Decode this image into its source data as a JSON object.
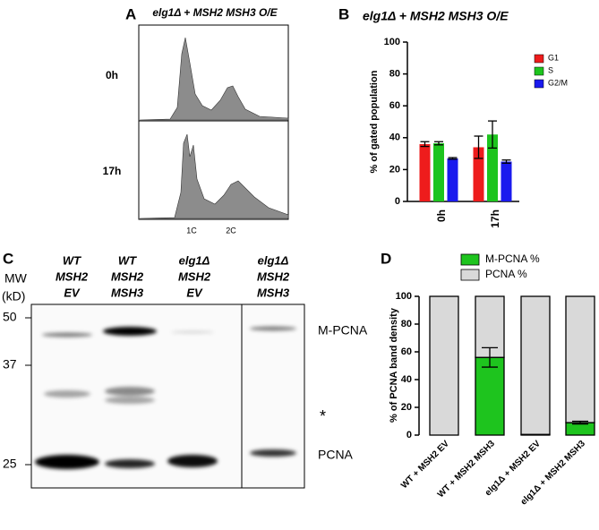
{
  "panel_a": {
    "label": "A",
    "title": "elg1Δ + MSH2 MSH3 O/E",
    "rows": [
      "0h",
      "17h"
    ],
    "x_labels": [
      "1C",
      "2C"
    ]
  },
  "panel_c": {
    "label": "C",
    "lanes": [
      [
        "WT",
        "MSH2",
        "EV"
      ],
      [
        "WT",
        "MSH2",
        "MSH3"
      ],
      [
        "elg1Δ",
        "MSH2",
        "EV"
      ],
      [
        "elg1Δ",
        "MSH2",
        "MSH3"
      ]
    ],
    "mw_title": [
      "MW",
      "(kD)"
    ],
    "markers": [
      "50",
      "37",
      "25"
    ],
    "bands": [
      "M-PCNA",
      "*",
      "PCNA"
    ]
  },
  "chart_data": [
    {
      "type": "bar",
      "panel_label": "B",
      "title": "elg1Δ + MSH2 MSH3 O/E",
      "y_label": "% of gated population",
      "categories": [
        "0h",
        "17h"
      ],
      "ylim": [
        0,
        100
      ],
      "yticks": [
        0,
        20,
        40,
        60,
        80,
        100
      ],
      "legend": "upper right",
      "series": [
        {
          "name": "G1",
          "color": "#ee1c1c",
          "values": [
            36,
            34
          ],
          "errors": [
            1.5,
            7
          ]
        },
        {
          "name": "S",
          "color": "#1ec41e",
          "values": [
            36.5,
            42
          ],
          "errors": [
            1,
            8.5
          ]
        },
        {
          "name": "G2/M",
          "color": "#1a1aee",
          "values": [
            27,
            25
          ],
          "errors": [
            0.5,
            1
          ]
        }
      ]
    },
    {
      "type": "stacked_bar",
      "panel_label": "D",
      "y_label": "% of PCNA band density",
      "categories": [
        "WT + MSH2 EV",
        "WT + MSH2 MSH3",
        "elg1Δ + MSH2 EV",
        "elg1Δ + MSH2 MSH3"
      ],
      "ylim": [
        0,
        100
      ],
      "yticks": [
        0,
        20,
        40,
        60,
        80,
        100
      ],
      "legend": "top",
      "series": [
        {
          "name": "M-PCNA %",
          "color": "#1ec41e",
          "values": [
            0,
            56,
            0.5,
            9
          ],
          "errors": [
            0,
            7,
            0,
            1
          ]
        },
        {
          "name": "PCNA %",
          "color": "#d9d9d9",
          "values": [
            100,
            44,
            99.5,
            91
          ]
        }
      ]
    }
  ]
}
